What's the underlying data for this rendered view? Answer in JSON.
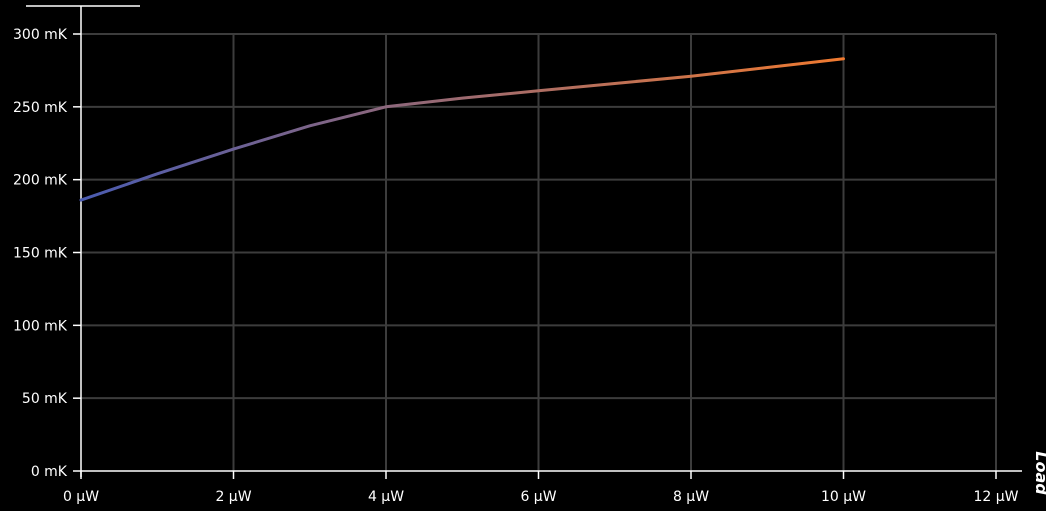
{
  "chart_data": {
    "type": "line",
    "title": "",
    "xlabel": "Load",
    "ylabel": "",
    "x_unit": "μW",
    "y_unit": "mK",
    "xlim": [
      0,
      12
    ],
    "ylim": [
      0,
      300
    ],
    "x_ticks": [
      0,
      2,
      4,
      6,
      8,
      10,
      12
    ],
    "y_ticks": [
      0,
      50,
      100,
      150,
      200,
      250,
      300
    ],
    "x_tick_labels": [
      "0 μW",
      "2 μW",
      "4 μW",
      "6 μW",
      "8 μW",
      "10 μW",
      "12 μW"
    ],
    "y_tick_labels": [
      "0 mK",
      "50 mK",
      "100 mK",
      "150 mK",
      "200 mK",
      "250 mK",
      "300 mK"
    ],
    "grid": true,
    "series": [
      {
        "x": [
          0,
          1,
          2,
          3,
          4,
          5,
          6,
          7,
          8,
          9,
          10
        ],
        "y": [
          186,
          204,
          221,
          237,
          250,
          256,
          261,
          266,
          271,
          277,
          283
        ]
      }
    ],
    "line_gradient": [
      "#4a5bb0",
      "#f07a30"
    ],
    "colors": {
      "background": "#000000",
      "grid": "#3c3c3c",
      "axis": "#ffffff",
      "text": "#ffffff"
    }
  }
}
